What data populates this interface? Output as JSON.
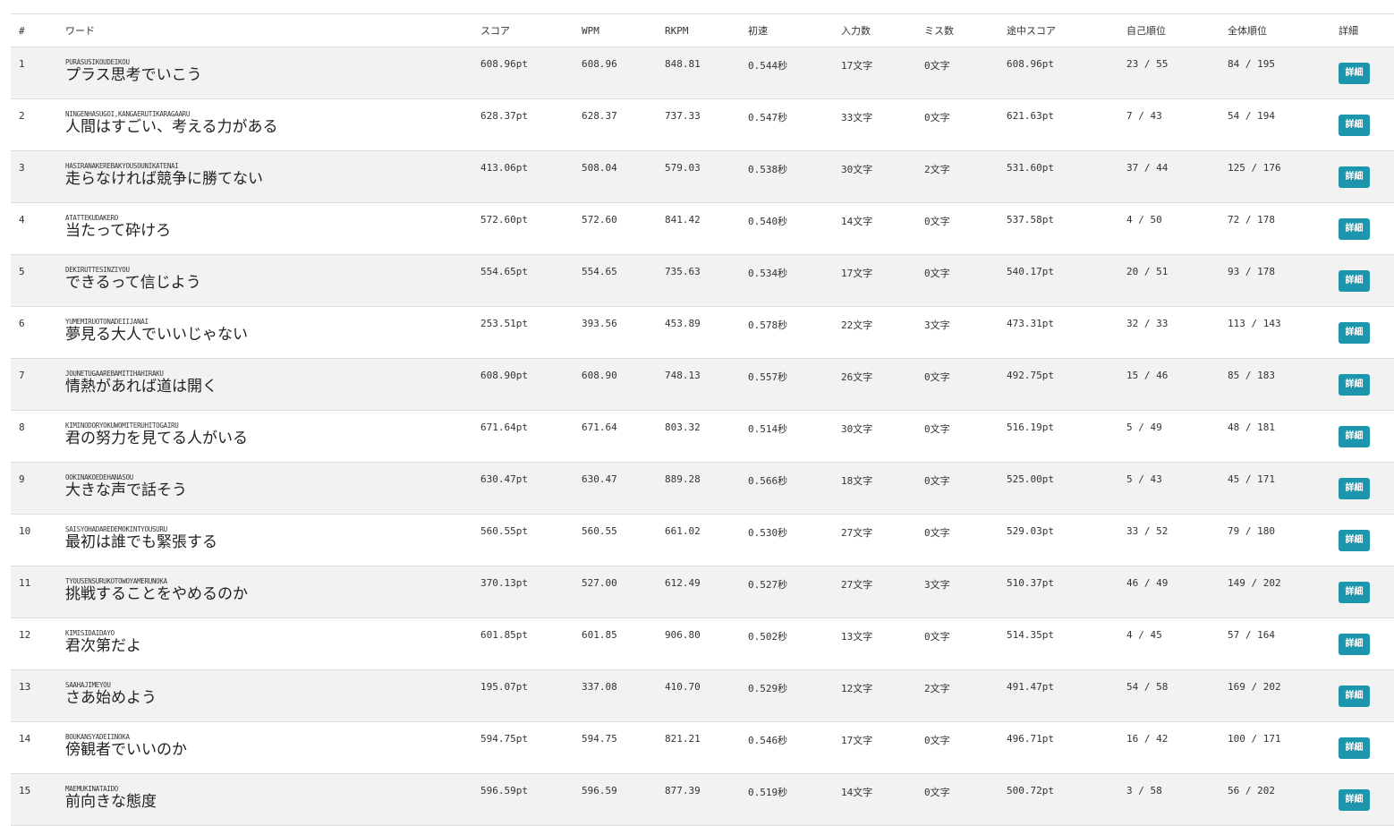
{
  "columns": [
    "#",
    "ワード",
    "スコア",
    "WPM",
    "RKPM",
    "初速",
    "入力数",
    "ミス数",
    "途中スコア",
    "自己順位",
    "全体順位",
    "詳細"
  ],
  "detail_label": "詳細",
  "rows": [
    {
      "no": "1",
      "romaji": "PURASUSIKOUDEIKOU",
      "word": "プラス思考でいこう",
      "score": "608.96pt",
      "wpm": "608.96",
      "rkpm": "848.81",
      "initial": "0.544秒",
      "input": "17文字",
      "miss": "0文字",
      "mid_score": "608.96pt",
      "self_rank": "23 / 55",
      "all_rank": "84 / 195"
    },
    {
      "no": "2",
      "romaji": "NINGENHASUGOI,KANGAERUTIKARAGAARU",
      "word": "人間はすごい、考える力がある",
      "score": "628.37pt",
      "wpm": "628.37",
      "rkpm": "737.33",
      "initial": "0.547秒",
      "input": "33文字",
      "miss": "0文字",
      "mid_score": "621.63pt",
      "self_rank": "7 / 43",
      "all_rank": "54 / 194"
    },
    {
      "no": "3",
      "romaji": "HASIRANAKEREBAKYOUSOUNIKATENAI",
      "word": "走らなければ競争に勝てない",
      "score": "413.06pt",
      "wpm": "508.04",
      "rkpm": "579.03",
      "initial": "0.538秒",
      "input": "30文字",
      "miss": "2文字",
      "mid_score": "531.60pt",
      "self_rank": "37 / 44",
      "all_rank": "125 / 176"
    },
    {
      "no": "4",
      "romaji": "ATATTEKUDAKERO",
      "word": "当たって砕けろ",
      "score": "572.60pt",
      "wpm": "572.60",
      "rkpm": "841.42",
      "initial": "0.540秒",
      "input": "14文字",
      "miss": "0文字",
      "mid_score": "537.58pt",
      "self_rank": "4 / 50",
      "all_rank": "72 / 178"
    },
    {
      "no": "5",
      "romaji": "DEKIRUTTESINZIYOU",
      "word": "できるって信じよう",
      "score": "554.65pt",
      "wpm": "554.65",
      "rkpm": "735.63",
      "initial": "0.534秒",
      "input": "17文字",
      "miss": "0文字",
      "mid_score": "540.17pt",
      "self_rank": "20 / 51",
      "all_rank": "93 / 178"
    },
    {
      "no": "6",
      "romaji": "YUMEMIRUOTONADEIIJANAI",
      "word": "夢見る大人でいいじゃない",
      "score": "253.51pt",
      "wpm": "393.56",
      "rkpm": "453.89",
      "initial": "0.578秒",
      "input": "22文字",
      "miss": "3文字",
      "mid_score": "473.31pt",
      "self_rank": "32 / 33",
      "all_rank": "113 / 143"
    },
    {
      "no": "7",
      "romaji": "JOUNETUGAAREBAMITIHAHIRAKU",
      "word": "情熱があれば道は開く",
      "score": "608.90pt",
      "wpm": "608.90",
      "rkpm": "748.13",
      "initial": "0.557秒",
      "input": "26文字",
      "miss": "0文字",
      "mid_score": "492.75pt",
      "self_rank": "15 / 46",
      "all_rank": "85 / 183"
    },
    {
      "no": "8",
      "romaji": "KIMINODORYOKUWOMITERUHITOGAIRU",
      "word": "君の努力を見てる人がいる",
      "score": "671.64pt",
      "wpm": "671.64",
      "rkpm": "803.32",
      "initial": "0.514秒",
      "input": "30文字",
      "miss": "0文字",
      "mid_score": "516.19pt",
      "self_rank": "5 / 49",
      "all_rank": "48 / 181"
    },
    {
      "no": "9",
      "romaji": "OOKINAKOEDEHANASOU",
      "word": "大きな声で話そう",
      "score": "630.47pt",
      "wpm": "630.47",
      "rkpm": "889.28",
      "initial": "0.566秒",
      "input": "18文字",
      "miss": "0文字",
      "mid_score": "525.00pt",
      "self_rank": "5 / 43",
      "all_rank": "45 / 171"
    },
    {
      "no": "10",
      "romaji": "SAISYOHADAREDEMOKINTYOUSURU",
      "word": "最初は誰でも緊張する",
      "score": "560.55pt",
      "wpm": "560.55",
      "rkpm": "661.02",
      "initial": "0.530秒",
      "input": "27文字",
      "miss": "0文字",
      "mid_score": "529.03pt",
      "self_rank": "33 / 52",
      "all_rank": "79 / 180"
    },
    {
      "no": "11",
      "romaji": "TYOUSENSURUKOTOWOYAMERUNOKA",
      "word": "挑戦することをやめるのか",
      "score": "370.13pt",
      "wpm": "527.00",
      "rkpm": "612.49",
      "initial": "0.527秒",
      "input": "27文字",
      "miss": "3文字",
      "mid_score": "510.37pt",
      "self_rank": "46 / 49",
      "all_rank": "149 / 202"
    },
    {
      "no": "12",
      "romaji": "KIMISIDAIDAYO",
      "word": "君次第だよ",
      "score": "601.85pt",
      "wpm": "601.85",
      "rkpm": "906.80",
      "initial": "0.502秒",
      "input": "13文字",
      "miss": "0文字",
      "mid_score": "514.35pt",
      "self_rank": "4 / 45",
      "all_rank": "57 / 164"
    },
    {
      "no": "13",
      "romaji": "SAAHAJIMEYOU",
      "word": "さあ始めよう",
      "score": "195.07pt",
      "wpm": "337.08",
      "rkpm": "410.70",
      "initial": "0.529秒",
      "input": "12文字",
      "miss": "2文字",
      "mid_score": "491.47pt",
      "self_rank": "54 / 58",
      "all_rank": "169 / 202"
    },
    {
      "no": "14",
      "romaji": "BOUKANSYADEIINOKA",
      "word": "傍観者でいいのか",
      "score": "594.75pt",
      "wpm": "594.75",
      "rkpm": "821.21",
      "initial": "0.546秒",
      "input": "17文字",
      "miss": "0文字",
      "mid_score": "496.71pt",
      "self_rank": "16 / 42",
      "all_rank": "100 / 171"
    },
    {
      "no": "15",
      "romaji": "MAEMUKINATAIDO",
      "word": "前向きな態度",
      "score": "596.59pt",
      "wpm": "596.59",
      "rkpm": "877.39",
      "initial": "0.519秒",
      "input": "14文字",
      "miss": "0文字",
      "mid_score": "500.72pt",
      "self_rank": "3 / 58",
      "all_rank": "56 / 202"
    }
  ]
}
